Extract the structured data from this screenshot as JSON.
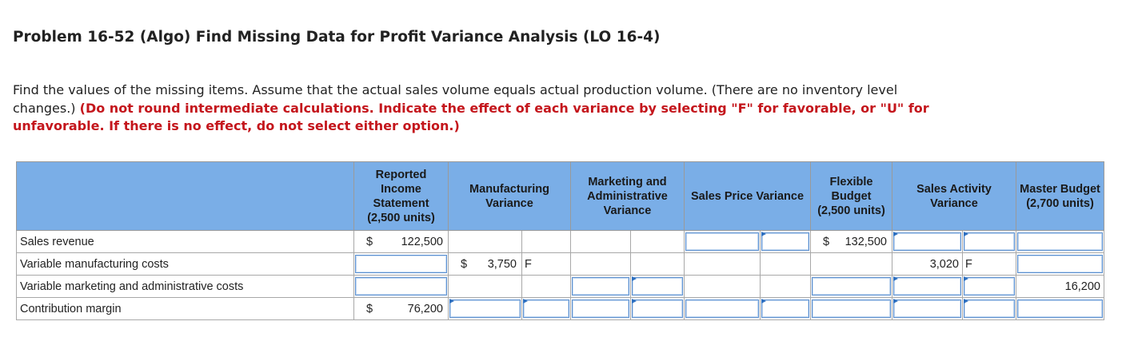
{
  "header": {
    "title": "Problem 16-52 (Algo) Find Missing Data for Profit Variance Analysis (LO 16-4)"
  },
  "instructions": {
    "text": "Find the values of the missing items. Assume that the actual sales volume equals actual production volume. (There are no inventory level changes.)",
    "emphasis": "(Do not round intermediate calculations. Indicate the effect of each variance by selecting \"F\" for favorable, or \"U\" for unfavorable. If there is no effect, do not select either option.)"
  },
  "table": {
    "columns": [
      "Reported Income Statement (2,500 units)",
      "Manufacturing Variance",
      "Marketing and Administrative Variance",
      "Sales Price Variance",
      "Flexible Budget (2,500 units)",
      "Sales Activity Variance",
      "Master Budget (2,700 units)"
    ],
    "rows": [
      {
        "label": "Sales revenue",
        "reported": {
          "currency": "$",
          "amount": "122,500"
        },
        "flexible_budget": {
          "currency": "$",
          "amount": "132,500"
        }
      },
      {
        "label": "Variable manufacturing costs",
        "manufacturing": {
          "currency": "$",
          "amount": "3,750",
          "effect": "F"
        },
        "sales_activity": {
          "amount": "3,020",
          "effect": "F"
        }
      },
      {
        "label": "Variable marketing and administrative costs",
        "master_budget": {
          "amount": "16,200"
        }
      },
      {
        "label": "Contribution margin",
        "reported": {
          "currency": "$",
          "amount": "76,200"
        }
      }
    ]
  }
}
